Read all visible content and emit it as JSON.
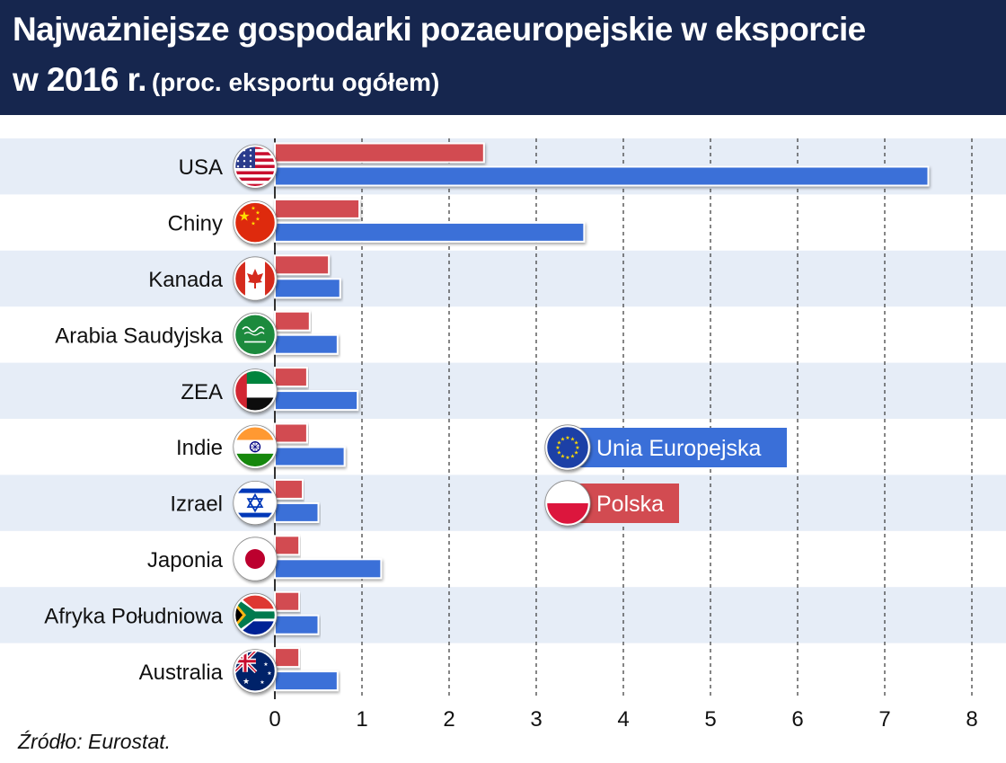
{
  "header": {
    "title_line1": "Najważniejsze gospodarki pozaeuropejskie w eksporcie",
    "title_year": "w 2016 r.",
    "title_unit": "(proc. eksportu ogółem)"
  },
  "source": "Źródło: Eurostat.",
  "colors": {
    "header_bg": "#16264e",
    "eu_bar": "#3a6fd8",
    "pl_bar": "#d24b51",
    "band": "#e6edf7"
  },
  "chart_data": {
    "type": "bar",
    "orientation": "horizontal",
    "categories": [
      "USA",
      "Chiny",
      "Kanada",
      "Arabia Saudyjska",
      "ZEA",
      "Indie",
      "Izrael",
      "Japonia",
      "Afryka Południowa",
      "Australia"
    ],
    "flag_icons": [
      "usa-flag-icon",
      "china-flag-icon",
      "canada-flag-icon",
      "saudi-arabia-flag-icon",
      "uae-flag-icon",
      "india-flag-icon",
      "israel-flag-icon",
      "japan-flag-icon",
      "south-africa-flag-icon",
      "australia-flag-icon"
    ],
    "series": [
      {
        "name": "Polska",
        "color": "#d24b51",
        "flag_icon": "poland-flag-icon",
        "values": [
          2.4,
          0.97,
          0.62,
          0.4,
          0.37,
          0.37,
          0.32,
          0.28,
          0.28,
          0.28
        ]
      },
      {
        "name": "Unia Europejska",
        "color": "#3a6fd8",
        "flag_icon": "eu-flag-icon",
        "values": [
          7.5,
          3.55,
          0.75,
          0.72,
          0.95,
          0.8,
          0.5,
          1.22,
          0.5,
          0.72
        ]
      }
    ],
    "x_ticks": [
      "0",
      "1",
      "2",
      "3",
      "4",
      "5",
      "6",
      "7",
      "8"
    ],
    "xlim": [
      0,
      8
    ],
    "grid": "vertical dashed",
    "legend_position": "center-right",
    "legend_order": [
      "Unia Europejska",
      "Polska"
    ]
  }
}
